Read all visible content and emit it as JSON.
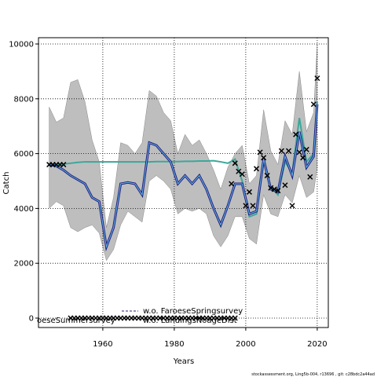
{
  "chart_data": {
    "type": "line",
    "x_label": "Years",
    "y_label": "Catch",
    "xlim": [
      1942,
      2023.1
    ],
    "ylim": [
      -344,
      10229
    ],
    "xticks": [
      1960,
      1980,
      2000,
      2020
    ],
    "yticks": [
      0,
      2000,
      4000,
      6000,
      8000,
      10000
    ],
    "grid": true,
    "x": [
      1945,
      1947,
      1949,
      1951,
      1953,
      1955,
      1957,
      1959,
      1961,
      1963,
      1965,
      1967,
      1969,
      1971,
      1973,
      1975,
      1977,
      1979,
      1981,
      1983,
      1985,
      1987,
      1989,
      1991,
      1993,
      1995,
      1997,
      1999,
      2001,
      2003,
      2005,
      2007,
      2009,
      2011,
      2013,
      2015,
      2017,
      2019,
      2020
    ],
    "band": {
      "color": "#bebebe",
      "lower": [
        4000,
        4250,
        4100,
        3300,
        3150,
        3300,
        3400,
        3100,
        2100,
        2500,
        3400,
        3900,
        3700,
        3500,
        5000,
        5200,
        5000,
        4700,
        3800,
        4000,
        3900,
        4000,
        3800,
        3000,
        2600,
        3000,
        3700,
        3700,
        2900,
        2700,
        4500,
        3800,
        3700,
        4500,
        4200,
        5200,
        4400,
        4600,
        5500
      ],
      "upper": [
        7700,
        7150,
        7300,
        8600,
        8700,
        7900,
        6500,
        5700,
        3300,
        4400,
        6400,
        6300,
        6000,
        6400,
        8300,
        8100,
        7500,
        7200,
        6000,
        6700,
        6300,
        6500,
        6000,
        5400,
        4700,
        5500,
        6000,
        6300,
        4900,
        5200,
        7600,
        6100,
        5600,
        7200,
        6700,
        9000,
        6800,
        7500,
        10000
      ]
    },
    "series": [
      {
        "color": "#3aa89a",
        "values": [
          5550,
          5600,
          5620,
          5650,
          5680,
          5700,
          5700,
          5700,
          5700,
          5700,
          5700,
          5700,
          5700,
          5700,
          5700,
          5710,
          5710,
          5710,
          5710,
          5720,
          5720,
          5730,
          5730,
          5740,
          5700,
          5650,
          5800,
          5000,
          3700,
          3800,
          5700,
          4800,
          4500,
          5700,
          5300,
          7300,
          5700,
          6000,
          7900
        ]
      },
      {
        "color": "#1f1f7a",
        "inner_color": "#66b8ee",
        "values": [
          5600,
          5550,
          5400,
          5200,
          5050,
          4900,
          4400,
          4250,
          2600,
          3300,
          4900,
          4950,
          4900,
          4500,
          6400,
          6300,
          6000,
          5700,
          4900,
          5200,
          4900,
          5200,
          4700,
          4000,
          3400,
          4100,
          4900,
          4900,
          3800,
          3900,
          5800,
          4700,
          4600,
          5900,
          5200,
          6800,
          5500,
          5900,
          7800
        ]
      }
    ],
    "points": [
      {
        "color": "#000000",
        "x": [
          1945,
          1946,
          1947,
          1948,
          1949,
          1996,
          1997,
          1998,
          1999,
          2000,
          2001,
          2002,
          2003,
          2004,
          2005,
          2006,
          2007,
          2008,
          2009,
          2010,
          2011,
          2012,
          2013,
          2014,
          2015,
          2016,
          2017,
          2018,
          2019,
          2020
        ],
        "values": [
          5600,
          5600,
          5600,
          5600,
          5600,
          4900,
          5650,
          5350,
          5250,
          4100,
          4600,
          4100,
          5450,
          6050,
          5850,
          5200,
          4750,
          4700,
          4650,
          6100,
          4850,
          6100,
          4100,
          6700,
          6050,
          5850,
          6150,
          5150,
          7800,
          8750
        ]
      },
      {
        "color": "#000000",
        "x": [
          1951,
          1952,
          1953,
          1954,
          1955,
          1956,
          1957,
          1958,
          1959,
          1960,
          1961,
          1962,
          1963,
          1964,
          1965,
          1966,
          1967,
          1968,
          1969,
          1970,
          1971,
          1972,
          1973,
          1974,
          1975,
          1976,
          1977,
          1978,
          1979,
          1980,
          1981,
          1982,
          1983,
          1984,
          1985,
          1986,
          1987,
          1988,
          1989,
          1990,
          1991,
          1992,
          1993,
          1994,
          1995,
          1996,
          1997
        ],
        "values": [
          0,
          0,
          0,
          0,
          0,
          0,
          0,
          0,
          0,
          0,
          0,
          0,
          0,
          0,
          0,
          0,
          0,
          0,
          0,
          0,
          0,
          0,
          0,
          0,
          0,
          0,
          0,
          0,
          0,
          0,
          0,
          0,
          0,
          0,
          0,
          0,
          0,
          0,
          0,
          0,
          0,
          0,
          0,
          0,
          0,
          0,
          0
        ]
      }
    ],
    "legend": [
      "w.o. FaroeseSpringsurvey",
      "oeseSummersurvey",
      "w.o. LandingsNoageDist"
    ],
    "footer": "stockassessment.org, Ling5b-004, r13696 , git: c28bdc2a44ad"
  }
}
